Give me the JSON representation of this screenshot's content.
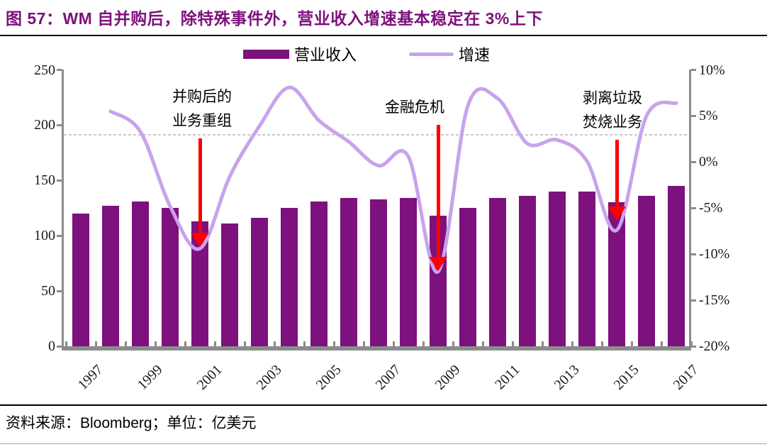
{
  "title": "图 57：WM 自并购后，除特殊事件外，营业收入增速基本稳定在 3%上下",
  "source_note": "资料来源：Bloomberg；单位：亿美元",
  "legend": {
    "bars_label": "营业收入",
    "line_label": "增速"
  },
  "colors": {
    "title": "#7D117D",
    "bar": "#7D117D",
    "line": "#C8A3EC",
    "arrow": "#FF0000",
    "axis": "#8C8C8C",
    "dashed_ref": "#C9C9C9"
  },
  "chart_data": {
    "type": "bar+line",
    "title": "WM 自并购后，除特殊事件外，营业收入增速基本稳定在 3%上下",
    "unit_note": "亿美元",
    "source": "Bloomberg",
    "categories": [
      "1997",
      "1998",
      "1999",
      "2000",
      "2001",
      "2002",
      "2003",
      "2004",
      "2005",
      "2006",
      "2007",
      "2008",
      "2009",
      "2010",
      "2011",
      "2012",
      "2013",
      "2014",
      "2015",
      "2016",
      "2017"
    ],
    "x_tick_labels_shown": [
      "1997",
      "1999",
      "2001",
      "2003",
      "2005",
      "2007",
      "2009",
      "2011",
      "2013",
      "2015",
      "2017"
    ],
    "series": [
      {
        "name": "营业收入",
        "type": "bar",
        "axis": "left",
        "color": "#7D117D",
        "values": [
          120,
          127,
          131,
          125,
          113,
          111,
          116,
          125,
          131,
          134,
          133,
          134,
          118,
          125,
          134,
          136,
          140,
          140,
          130,
          136,
          145
        ]
      },
      {
        "name": "增速",
        "type": "line",
        "axis": "right",
        "color": "#C8A3EC",
        "values": [
          null,
          5.5,
          3.3,
          -4.8,
          -9.4,
          -1.6,
          3.9,
          8.1,
          4.5,
          2.2,
          -0.4,
          0.6,
          -11.9,
          6.1,
          6.9,
          2.0,
          2.4,
          0.1,
          -7.4,
          5.0,
          6.4
        ]
      }
    ],
    "left_axis": {
      "min": 0,
      "max": 250,
      "tick_values": [
        0,
        50,
        100,
        150,
        200,
        250
      ],
      "tick_labels": [
        "0",
        "50",
        "100",
        "150",
        "200",
        "250"
      ]
    },
    "right_axis": {
      "min": -20,
      "max": 10,
      "tick_values": [
        -20,
        -15,
        -10,
        -5,
        0,
        5,
        10
      ],
      "tick_labels": [
        "-20%",
        "-15%",
        "-10%",
        "-5%",
        "0%",
        "5%",
        "10%"
      ]
    },
    "reference_line": {
      "value_pct": 3,
      "style": "dashed"
    },
    "grid": "off",
    "legend_position": "top-center",
    "annotations": [
      {
        "text_lines": [
          "并购后的",
          "业务重组"
        ],
        "year": "2001",
        "arrow_from_pct": 2.6,
        "arrow_to_pct": -9.2,
        "text_dx": 3
      },
      {
        "text_lines": [
          "金融危机"
        ],
        "year": "2009",
        "arrow_from_pct": 4.0,
        "arrow_to_pct": -11.8,
        "text_dx": -33
      },
      {
        "text_lines": [
          "剥离垃圾",
          "焚烧业务"
        ],
        "year": "2015",
        "arrow_from_pct": 2.4,
        "arrow_to_pct": -6.4,
        "text_dx": -6
      }
    ]
  }
}
